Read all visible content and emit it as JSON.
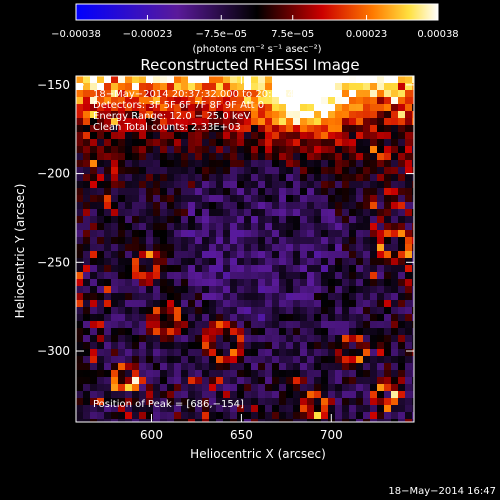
{
  "chart_data": {
    "type": "heatmap",
    "title": "Reconstructed RHESSI Image",
    "xlabel": "Heliocentric X (arcsec)",
    "ylabel": "Heliocentric Y (arcsec)",
    "xlim": [
      558,
      746
    ],
    "ylim": [
      -340,
      -145
    ],
    "x_ticks": [
      {
        "value": 600,
        "label": "600"
      },
      {
        "value": 650,
        "label": "650"
      },
      {
        "value": 700,
        "label": "700"
      }
    ],
    "y_ticks": [
      {
        "value": -150,
        "label": "−150"
      },
      {
        "value": -200,
        "label": "−200"
      },
      {
        "value": -250,
        "label": "−250"
      },
      {
        "value": -300,
        "label": "−300"
      }
    ],
    "colorbar": {
      "range": [
        -0.00038,
        0.00038
      ],
      "ticks": [
        {
          "value": -0.00038,
          "label": "−0.00038"
        },
        {
          "value": -0.00023,
          "label": "−0.00023"
        },
        {
          "value": -7.5e-05,
          "label": "−7.5e−05"
        },
        {
          "value": 7.5e-05,
          "label": "7.5e−05"
        },
        {
          "value": 0.00023,
          "label": "0.00023"
        },
        {
          "value": 0.00038,
          "label": "0.00038"
        }
      ],
      "unit_label": "(photons cm⁻² s⁻¹ asec⁻²)"
    },
    "annotations": [
      "18−May−2014 20:37:32.000 to 20:39:40.000",
      "Detectors: 3F 5F 6F 7F 8F 9F Att 0",
      "Energy Range: 12.0 − 25.0 keV",
      "Clean     Total counts: 2.33E+03"
    ],
    "peak_label": "Position of Peak = [686,−154]",
    "peak": [
      686,
      -154
    ]
  },
  "timestamp": "18−May−2014 16:47"
}
